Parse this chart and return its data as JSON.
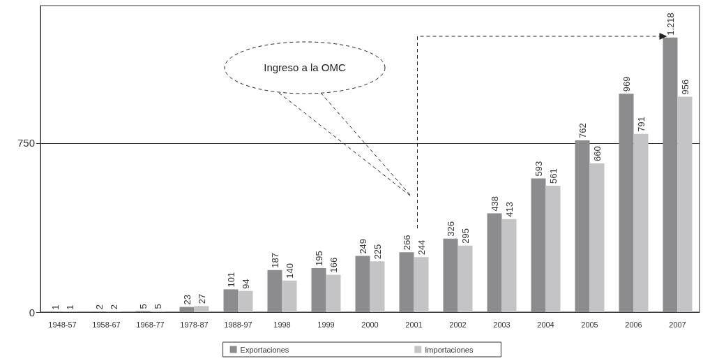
{
  "chart_data": {
    "type": "bar",
    "categories": [
      "1948-57",
      "1958-67",
      "1968-77",
      "1978-87",
      "1988-97",
      "1998",
      "1999",
      "2000",
      "2001",
      "2002",
      "2003",
      "2004",
      "2005",
      "2006",
      "2007"
    ],
    "series": [
      {
        "name": "Exportaciones",
        "color": "#8c8c8e",
        "values": [
          1,
          2,
          5,
          23,
          101,
          187,
          195,
          249,
          266,
          326,
          438,
          593,
          762,
          969,
          1218
        ],
        "value_labels": [
          "1",
          "2",
          "5",
          "23",
          "101",
          "187",
          "195",
          "249",
          "266",
          "326",
          "438",
          "593",
          "762",
          "969",
          "1.218"
        ]
      },
      {
        "name": "Importaciones",
        "color": "#c4c4c6",
        "values": [
          1,
          2,
          5,
          27,
          94,
          140,
          166,
          225,
          244,
          295,
          413,
          561,
          660,
          791,
          956
        ],
        "value_labels": [
          "1",
          "2",
          "5",
          "27",
          "94",
          "140",
          "166",
          "225",
          "244",
          "295",
          "413",
          "561",
          "660",
          "791",
          "956"
        ]
      }
    ],
    "ylim": [
      0,
      1360
    ],
    "yticks": [
      0,
      750
    ],
    "grid": "y",
    "legend": "bottom",
    "annotations": [
      "Ingreso a la OMC"
    ]
  }
}
